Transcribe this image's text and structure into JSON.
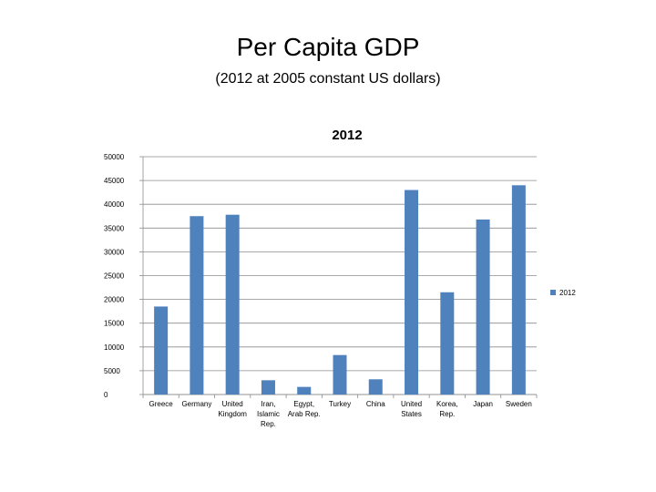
{
  "slide": {
    "title": "Per Capita GDP",
    "subtitle": "(2012 at 2005 constant US dollars)"
  },
  "chart_data": {
    "type": "bar",
    "title": "2012",
    "categories": [
      [
        "Greece"
      ],
      [
        "Germany"
      ],
      [
        "United",
        "Kingdom"
      ],
      [
        "Iran,",
        "Islamic",
        "Rep."
      ],
      [
        "Egypt,",
        "Arab Rep."
      ],
      [
        "Turkey"
      ],
      [
        "China"
      ],
      [
        "United",
        "States"
      ],
      [
        "Korea,",
        "Rep."
      ],
      [
        "Japan"
      ],
      [
        "Sweden"
      ]
    ],
    "series": [
      {
        "name": "2012",
        "color": "#4f81bd",
        "values": [
          18500,
          37500,
          37800,
          3000,
          1600,
          8300,
          3200,
          43000,
          21500,
          36800,
          44000
        ]
      }
    ],
    "yticks": [
      0,
      5000,
      10000,
      15000,
      20000,
      25000,
      30000,
      35000,
      40000,
      45000,
      50000
    ],
    "ylim": [
      0,
      50000
    ],
    "grid": true,
    "legend": "right",
    "xlabel": "",
    "ylabel": ""
  }
}
